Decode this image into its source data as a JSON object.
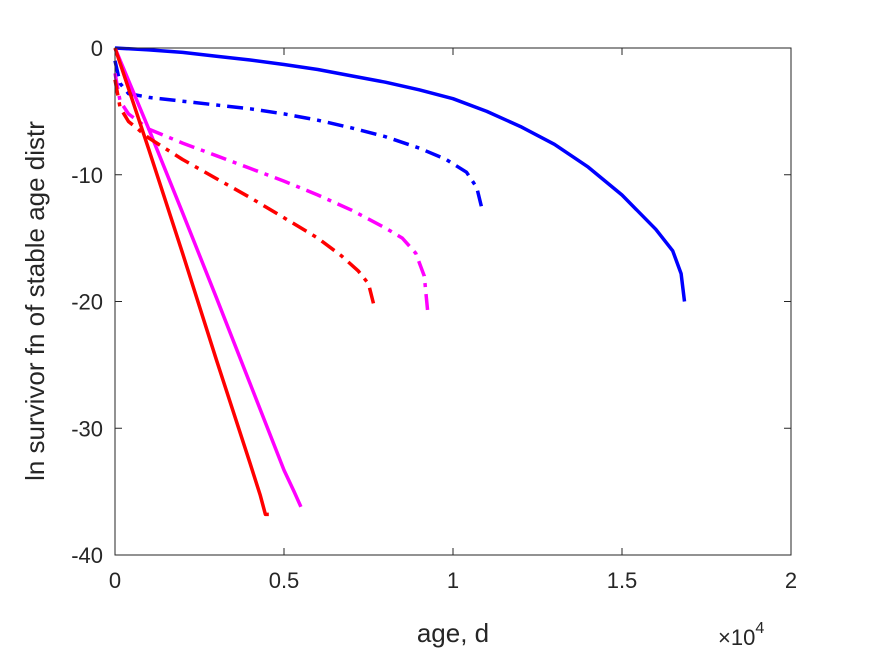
{
  "chart_data": {
    "type": "line",
    "title": "",
    "xlabel": "age, d",
    "ylabel": "ln survivor fn of stable age distr",
    "x_exponent_label": "×10",
    "x_exponent_power": "4",
    "xlim": [
      0,
      20000
    ],
    "ylim": [
      -40,
      0
    ],
    "xticks": [
      0,
      5000,
      10000,
      15000,
      20000
    ],
    "xtick_labels": [
      "0",
      "0.5",
      "1",
      "1.5",
      "2"
    ],
    "yticks": [
      0,
      -10,
      -20,
      -30,
      -40
    ],
    "ytick_labels": [
      "0",
      "-10",
      "-20",
      "-30",
      "-40"
    ],
    "grid": false,
    "legend": "none",
    "series": [
      {
        "color": "#0000ff",
        "style": "solid",
        "x": [
          0,
          1000,
          2000,
          3000,
          4000,
          5000,
          6000,
          7000,
          8000,
          9000,
          10000,
          11000,
          12000,
          13000,
          14000,
          15000,
          16000,
          16500,
          16750,
          16850
        ],
        "y": [
          0,
          -0.15,
          -0.35,
          -0.65,
          -0.95,
          -1.3,
          -1.7,
          -2.2,
          -2.7,
          -3.3,
          -4.0,
          -5.0,
          -6.2,
          -7.6,
          -9.4,
          -11.6,
          -14.3,
          -16.0,
          -17.8,
          -20.0
        ]
      },
      {
        "color": "#0000ff",
        "style": "dashdot",
        "x": [
          0,
          150,
          400,
          1000,
          2000,
          3000,
          4000,
          5000,
          6000,
          7000,
          8000,
          9000,
          9800,
          10400,
          10700,
          10850
        ],
        "y": [
          -1.0,
          -2.8,
          -3.6,
          -3.9,
          -4.2,
          -4.5,
          -4.8,
          -5.2,
          -5.7,
          -6.3,
          -7.0,
          -7.9,
          -8.8,
          -9.8,
          -11.0,
          -12.6
        ]
      },
      {
        "color": "#ff00ff",
        "style": "solid",
        "x": [
          0,
          1000,
          2000,
          3000,
          4000,
          5000,
          5300,
          5500
        ],
        "y": [
          0,
          -6.4,
          -13.0,
          -19.7,
          -26.5,
          -33.3,
          -35.0,
          -36.2
        ]
      },
      {
        "color": "#ff00ff",
        "style": "dashdot",
        "x": [
          0,
          150,
          400,
          1000,
          2000,
          3000,
          4000,
          5000,
          6000,
          7000,
          8000,
          8500,
          8900,
          9150,
          9250
        ],
        "y": [
          -2.0,
          -4.2,
          -5.2,
          -6.4,
          -7.5,
          -8.5,
          -9.5,
          -10.5,
          -11.6,
          -12.8,
          -14.2,
          -15.0,
          -16.2,
          -18.0,
          -20.8
        ]
      },
      {
        "color": "#ff0000",
        "style": "solid",
        "x": [
          0,
          1000,
          2000,
          3000,
          4000,
          4300,
          4450,
          4550
        ],
        "y": [
          0,
          -8.0,
          -16.2,
          -24.6,
          -32.8,
          -35.3,
          -36.8,
          -36.8
        ]
      },
      {
        "color": "#ff0000",
        "style": "dashdot",
        "x": [
          0,
          150,
          400,
          1000,
          2000,
          3000,
          4000,
          5000,
          6000,
          6700,
          7200,
          7500,
          7650
        ],
        "y": [
          -2.5,
          -4.7,
          -5.8,
          -7.1,
          -8.8,
          -10.3,
          -11.8,
          -13.4,
          -15.0,
          -16.4,
          -17.6,
          -18.6,
          -20.2
        ]
      }
    ]
  }
}
